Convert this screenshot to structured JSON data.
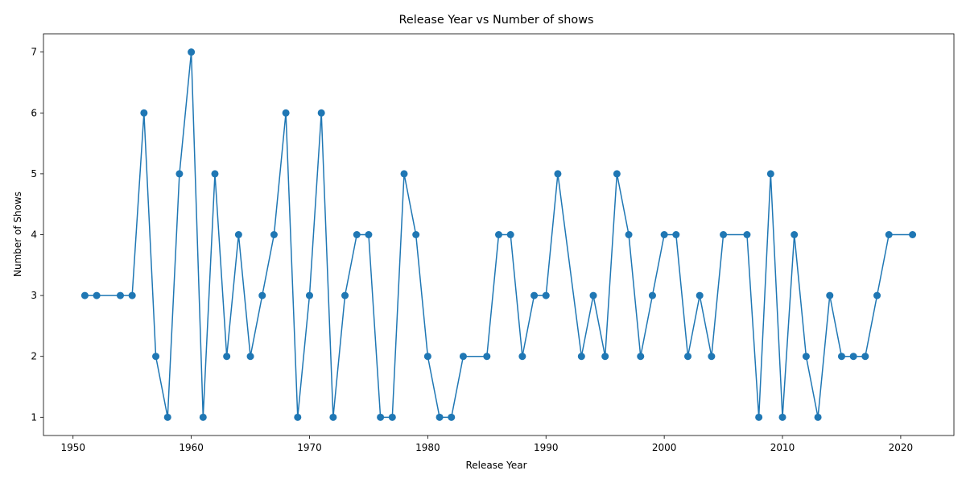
{
  "chart_data": {
    "type": "line",
    "title": "Release Year vs Number of shows",
    "xlabel": "Release Year",
    "ylabel": "Number of Shows",
    "xlim": [
      1947.5,
      2024.5
    ],
    "ylim": [
      0.7,
      7.3
    ],
    "xticks": [
      1950,
      1960,
      1970,
      1980,
      1990,
      2000,
      2010,
      2020
    ],
    "yticks": [
      1,
      2,
      3,
      4,
      5,
      6,
      7
    ],
    "grid": false,
    "legend": "none",
    "marker": "circle",
    "color": "#1f77b4",
    "series": [
      {
        "x": [
          1951,
          1952,
          1954,
          1955,
          1956,
          1957,
          1958,
          1959,
          1960,
          1961,
          1962,
          1963,
          1964,
          1965,
          1966,
          1967,
          1968,
          1969,
          1970,
          1971,
          1972,
          1973,
          1974,
          1975,
          1976,
          1977,
          1978,
          1979,
          1980,
          1981,
          1982,
          1983,
          1985,
          1986,
          1987,
          1988,
          1989,
          1990,
          1991,
          1993,
          1994,
          1995,
          1996,
          1997,
          1998,
          1999,
          2000,
          2001,
          2002,
          2003,
          2004,
          2005,
          2007,
          2008,
          2009,
          2010,
          2011,
          2012,
          2013,
          2014,
          2015,
          2016,
          2017,
          2018,
          2019,
          2021
        ],
        "y": [
          3,
          3,
          3,
          3,
          6,
          2,
          1,
          5,
          7,
          1,
          5,
          2,
          4,
          2,
          3,
          4,
          6,
          1,
          3,
          6,
          1,
          3,
          4,
          4,
          1,
          1,
          5,
          4,
          2,
          1,
          1,
          2,
          2,
          4,
          4,
          2,
          3,
          3,
          5,
          2,
          3,
          2,
          5,
          4,
          2,
          3,
          4,
          4,
          2,
          3,
          2,
          4,
          4,
          1,
          5,
          1,
          4,
          2,
          1,
          3,
          2,
          2,
          2,
          3,
          4,
          4
        ]
      }
    ]
  }
}
